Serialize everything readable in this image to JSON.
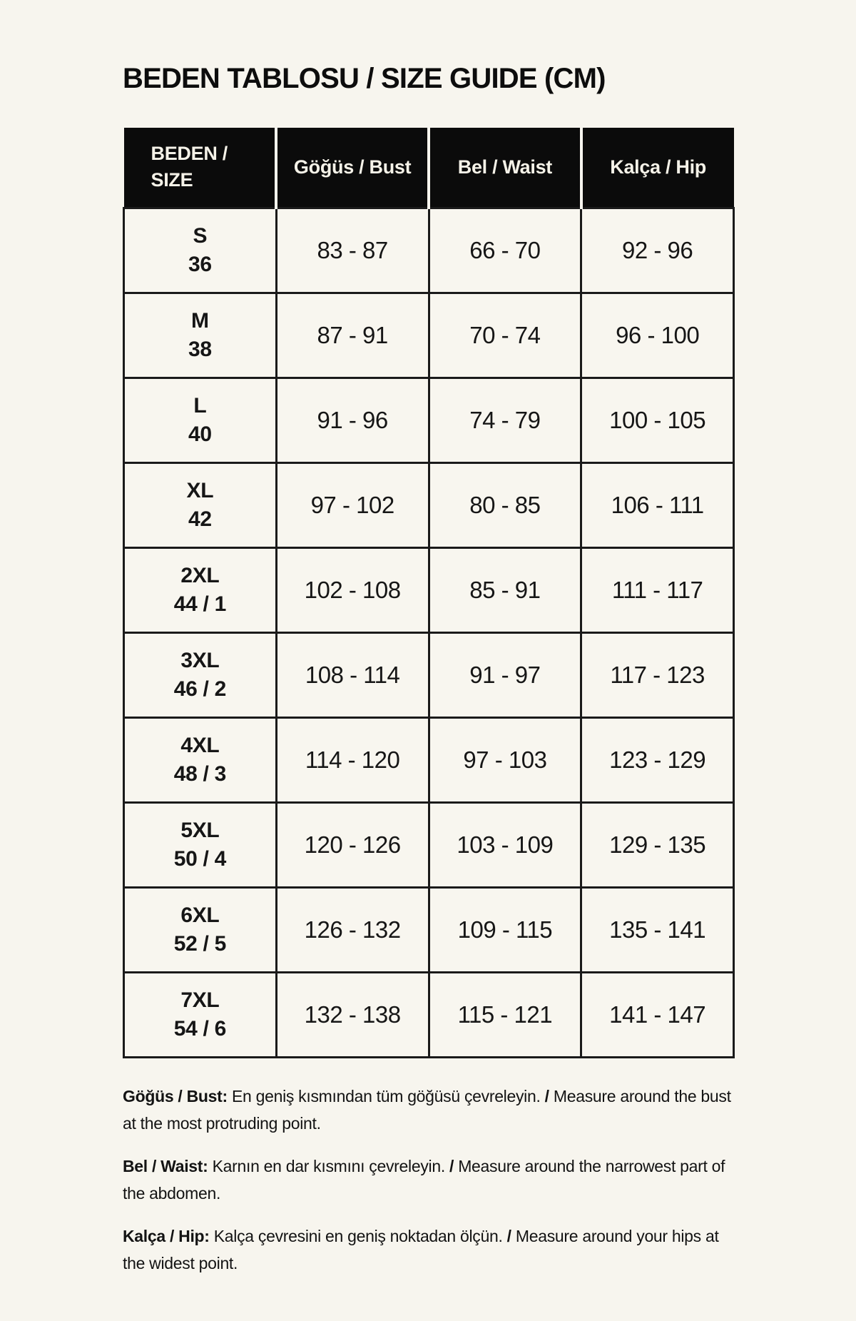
{
  "title": "BEDEN TABLOSU / SIZE GUIDE (CM)",
  "table": {
    "header": {
      "size_line1": "BEDEN /",
      "size_line2": "SIZE",
      "bust": "Göğüs / Bust",
      "waist": "Bel / Waist",
      "hip": "Kalça / Hip"
    },
    "rows": [
      {
        "size": "S",
        "tr_size": "36",
        "bust": "83 - 87",
        "waist": "66 - 70",
        "hip": "92 - 96"
      },
      {
        "size": "M",
        "tr_size": "38",
        "bust": "87 - 91",
        "waist": "70 - 74",
        "hip": "96 - 100"
      },
      {
        "size": "L",
        "tr_size": "40",
        "bust": "91 - 96",
        "waist": "74 - 79",
        "hip": "100 - 105"
      },
      {
        "size": "XL",
        "tr_size": "42",
        "bust": "97 - 102",
        "waist": "80 - 85",
        "hip": "106 - 111"
      },
      {
        "size": "2XL",
        "tr_size": "44 / 1",
        "bust": "102 - 108",
        "waist": "85 - 91",
        "hip": "111 - 117"
      },
      {
        "size": "3XL",
        "tr_size": "46 / 2",
        "bust": "108 - 114",
        "waist": "91 - 97",
        "hip": "117 - 123"
      },
      {
        "size": "4XL",
        "tr_size": "48 / 3",
        "bust": "114 - 120",
        "waist": "97 - 103",
        "hip": "123 - 129"
      },
      {
        "size": "5XL",
        "tr_size": "50 / 4",
        "bust": "120 - 126",
        "waist": "103 - 109",
        "hip": "129 - 135"
      },
      {
        "size": "6XL",
        "tr_size": "52 / 5",
        "bust": "126 - 132",
        "waist": "109 - 115",
        "hip": "135 - 141"
      },
      {
        "size": "7XL",
        "tr_size": "54 / 6",
        "bust": "132 - 138",
        "waist": "115 - 121",
        "hip": "141 - 147"
      }
    ]
  },
  "notes": [
    {
      "label": "Göğüs / Bust:",
      "tr": "En geniş kısmından tüm göğüsü çevreleyin.",
      "sep": "/",
      "en": "Measure around the bust at the most protruding point."
    },
    {
      "label": "Bel / Waist:",
      "tr": "Karnın en dar kısmını çevreleyin.",
      "sep": "/",
      "en": "Measure around the narrowest part of the abdomen."
    },
    {
      "label": "Kalça / Hip:",
      "tr": "Kalça çevresini en geniş noktadan ölçün.",
      "sep": "/",
      "en": "Measure around your hips at the widest point."
    }
  ],
  "colors": {
    "background": "#F7F5EE",
    "header_background": "#0B0B0B",
    "header_text": "#F5F2E8",
    "border": "#1A1A1A",
    "text": "#141414"
  }
}
